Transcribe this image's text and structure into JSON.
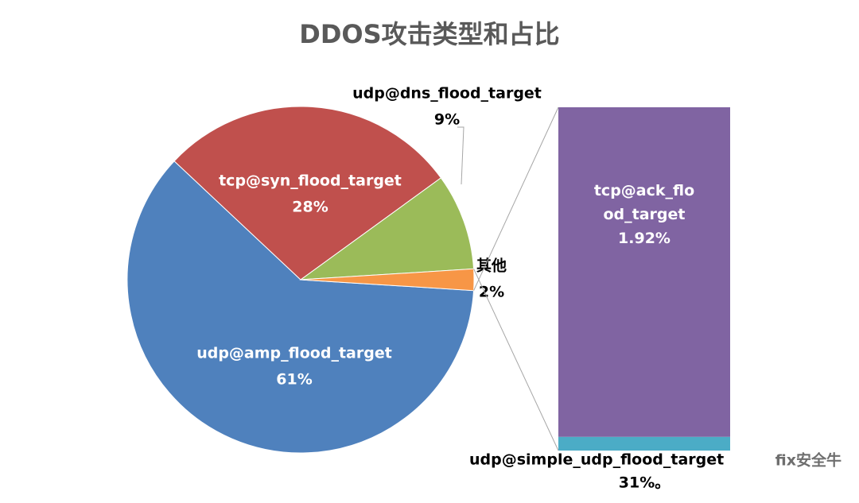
{
  "chart_data": {
    "type": "pie-of-bar",
    "title": "DDOS攻击类型和占比",
    "categories": [
      "udp@amp_flood_target",
      "tcp@syn_flood_target",
      "udp@dns_flood_target",
      "其他"
    ],
    "values": [
      61,
      28,
      9,
      2
    ],
    "value_labels": [
      "61%",
      "28%",
      "9%",
      "2%"
    ],
    "colors": [
      "#4f81bd",
      "#c0504d",
      "#9bbb59",
      "#f79646"
    ],
    "bar": {
      "categories": [
        "tcp@ack_flood_target",
        "udp@simple_udp_flood_target"
      ],
      "values": [
        1.92,
        0.08
      ],
      "value_labels": [
        "1.92%",
        null
      ],
      "colors": [
        "#8064a2",
        "#4bacc6"
      ]
    },
    "annotations": [
      "31%。",
      "fix安全牛"
    ]
  }
}
